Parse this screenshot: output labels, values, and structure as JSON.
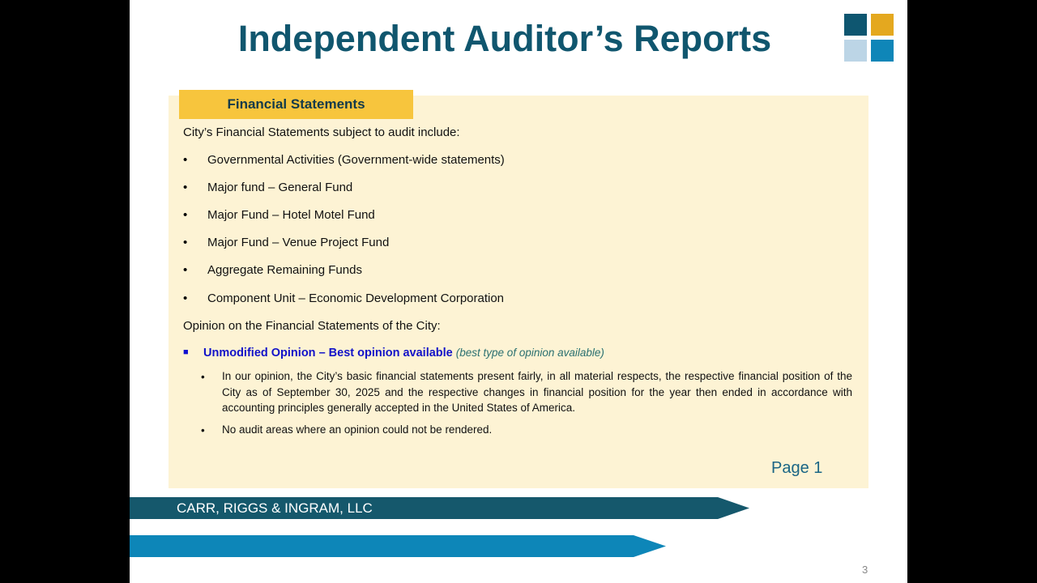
{
  "title": "Independent Auditor’s Reports",
  "logo_colors": [
    "#0e5670",
    "#e4a81f",
    "#bcd5e6",
    "#0f86b8"
  ],
  "section_tab": "Financial Statements",
  "intro": "City’s Financial Statements subject to audit include:",
  "items": [
    "Governmental Activities (Government-wide statements)",
    "Major fund – General Fund",
    "Major Fund – Hotel Motel Fund",
    "Major Fund – Venue Project Fund",
    "Aggregate Remaining Funds",
    "Component Unit – Economic Development Corporation"
  ],
  "opinion_heading": "Opinion on the Financial Statements of the City:",
  "opinion": {
    "label": "Unmodified Opinion – Best opinion available",
    "note": "(best type of opinion available)",
    "details": [
      "In our opinion, the City’s basic financial statements present fairly, in all material respects, the respective financial position of the City as of September 30, 2025 and the respective changes in financial position for the year then ended in accordance with accounting principles generally accepted in the United States of America.",
      "No audit areas where an opinion could not be rendered."
    ]
  },
  "page_label": "Page 1",
  "firm": "CARR, RIGGS & INGRAM, LLC",
  "slide_number": "3"
}
